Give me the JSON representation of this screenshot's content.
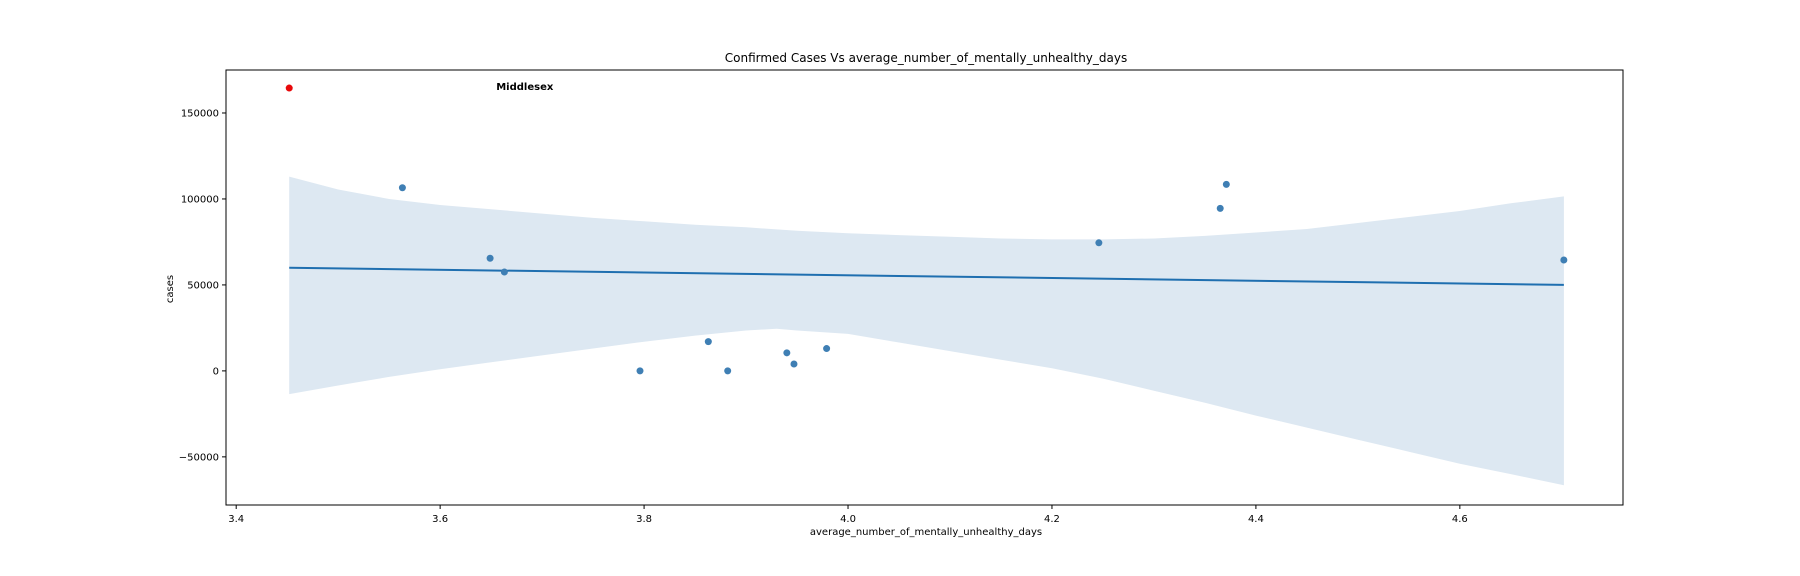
{
  "chart_data": {
    "type": "scatter",
    "title": "Confirmed Cases Vs average_number_of_mentally_unhealthy_days",
    "xlabel": "average_number_of_mentally_unhealthy_days",
    "ylabel": "cases",
    "xlim": [
      3.39,
      4.76
    ],
    "ylim": [
      -78000,
      175000
    ],
    "xticks": [
      3.4,
      3.6,
      3.8,
      4.0,
      4.2,
      4.4,
      4.6
    ],
    "xtick_labels": [
      "3.4",
      "3.6",
      "3.8",
      "4.0",
      "4.2",
      "4.4",
      "4.6"
    ],
    "yticks": [
      -50000,
      0,
      50000,
      100000,
      150000
    ],
    "ytick_labels": [
      "−50000",
      "0",
      "50000",
      "100000",
      "150000"
    ],
    "grid": false,
    "points": [
      {
        "x": 3.563,
        "y": 106500
      },
      {
        "x": 3.649,
        "y": 65500
      },
      {
        "x": 3.663,
        "y": 57500
      },
      {
        "x": 3.796,
        "y": 0
      },
      {
        "x": 3.863,
        "y": 17000
      },
      {
        "x": 3.882,
        "y": 0
      },
      {
        "x": 3.94,
        "y": 10500
      },
      {
        "x": 3.947,
        "y": 4000
      },
      {
        "x": 3.979,
        "y": 13000
      },
      {
        "x": 4.246,
        "y": 74500
      },
      {
        "x": 4.365,
        "y": 94500
      },
      {
        "x": 4.371,
        "y": 108500
      },
      {
        "x": 4.702,
        "y": 64500
      }
    ],
    "highlight": {
      "x": 3.452,
      "y": 164500,
      "label": "Middlesex",
      "label_x": 3.655
    },
    "regression_line": [
      {
        "x": 3.452,
        "y": 60000
      },
      {
        "x": 4.702,
        "y": 50000
      }
    ],
    "confidence_band": {
      "upper": [
        {
          "x": 3.452,
          "y": 113000
        },
        {
          "x": 3.5,
          "y": 105500
        },
        {
          "x": 3.55,
          "y": 100000
        },
        {
          "x": 3.6,
          "y": 96500
        },
        {
          "x": 3.65,
          "y": 94000
        },
        {
          "x": 3.7,
          "y": 91500
        },
        {
          "x": 3.75,
          "y": 89000
        },
        {
          "x": 3.8,
          "y": 87000
        },
        {
          "x": 3.85,
          "y": 85000
        },
        {
          "x": 3.9,
          "y": 83500
        },
        {
          "x": 3.95,
          "y": 81500
        },
        {
          "x": 4.0,
          "y": 80000
        },
        {
          "x": 4.05,
          "y": 79000
        },
        {
          "x": 4.1,
          "y": 78000
        },
        {
          "x": 4.15,
          "y": 77000
        },
        {
          "x": 4.2,
          "y": 76500
        },
        {
          "x": 4.25,
          "y": 76500
        },
        {
          "x": 4.3,
          "y": 77000
        },
        {
          "x": 4.35,
          "y": 78500
        },
        {
          "x": 4.4,
          "y": 80500
        },
        {
          "x": 4.45,
          "y": 82500
        },
        {
          "x": 4.5,
          "y": 86000
        },
        {
          "x": 4.55,
          "y": 89500
        },
        {
          "x": 4.6,
          "y": 93000
        },
        {
          "x": 4.65,
          "y": 97500
        },
        {
          "x": 4.702,
          "y": 101500
        }
      ],
      "lower": [
        {
          "x": 3.452,
          "y": -13500
        },
        {
          "x": 3.5,
          "y": -8500
        },
        {
          "x": 3.55,
          "y": -3500
        },
        {
          "x": 3.6,
          "y": 1000
        },
        {
          "x": 3.65,
          "y": 5000
        },
        {
          "x": 3.7,
          "y": 9000
        },
        {
          "x": 3.75,
          "y": 13000
        },
        {
          "x": 3.8,
          "y": 17000
        },
        {
          "x": 3.85,
          "y": 20500
        },
        {
          "x": 3.9,
          "y": 23500
        },
        {
          "x": 3.93,
          "y": 24500
        },
        {
          "x": 3.95,
          "y": 23500
        },
        {
          "x": 4.0,
          "y": 21500
        },
        {
          "x": 4.05,
          "y": 16500
        },
        {
          "x": 4.1,
          "y": 11500
        },
        {
          "x": 4.15,
          "y": 6500
        },
        {
          "x": 4.2,
          "y": 1500
        },
        {
          "x": 4.25,
          "y": -4500
        },
        {
          "x": 4.3,
          "y": -11500
        },
        {
          "x": 4.35,
          "y": -18500
        },
        {
          "x": 4.4,
          "y": -26000
        },
        {
          "x": 4.45,
          "y": -33000
        },
        {
          "x": 4.5,
          "y": -40000
        },
        {
          "x": 4.55,
          "y": -47000
        },
        {
          "x": 4.6,
          "y": -54000
        },
        {
          "x": 4.65,
          "y": -60000
        },
        {
          "x": 4.702,
          "y": -66500
        }
      ]
    },
    "colors": {
      "points": "#3f7fb4",
      "highlight": "#e8080a",
      "line": "#1f6fb0",
      "band": "#dde8f2"
    }
  }
}
